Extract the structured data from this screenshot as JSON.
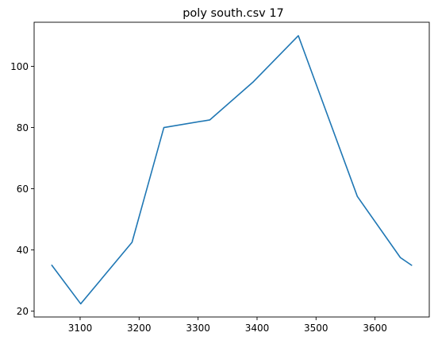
{
  "chart_data": {
    "type": "line",
    "title": "poly south.csv 17",
    "xlabel": "",
    "ylabel": "",
    "xlim": [
      3022,
      3692
    ],
    "ylim": [
      18.1,
      114.4
    ],
    "xticks": [
      3100,
      3200,
      3300,
      3400,
      3500,
      3600
    ],
    "yticks": [
      20,
      40,
      60,
      80,
      100
    ],
    "grid": false,
    "legend": null,
    "series": [
      {
        "color": "#1f77b4",
        "x": [
          3052,
          3101,
          3188,
          3242,
          3320,
          3394,
          3470,
          3570,
          3643,
          3662
        ],
        "y": [
          35.0,
          22.4,
          42.5,
          80.0,
          82.5,
          95.0,
          110.0,
          57.5,
          37.5,
          35.0
        ]
      }
    ]
  }
}
